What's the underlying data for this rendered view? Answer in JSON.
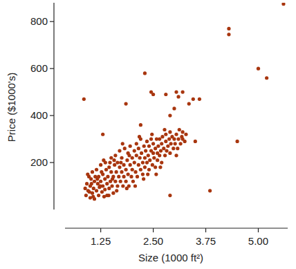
{
  "chart_data": {
    "type": "scatter",
    "x_label": "Size (1000 ft²)",
    "y_label": "Price ($1000's)",
    "color": "#a8360f",
    "marker": "circle",
    "grid": false,
    "xlim": [
      0.4,
      5.7
    ],
    "ylim": [
      0,
      880
    ],
    "xticks": [
      1.25,
      {
        "value": 2.5,
        "label": "2.50"
      },
      3.75,
      {
        "value": 5,
        "label": "5.00"
      }
    ],
    "yticks": [
      200,
      400,
      600,
      800
    ],
    "x": [
      0.9,
      0.92,
      0.95,
      0.97,
      1.0,
      1.0,
      1.02,
      1.05,
      1.05,
      1.08,
      1.1,
      1.1,
      0.88,
      0.94,
      1.03,
      1.07,
      0.98,
      1.12,
      1.15,
      1.15,
      1.18,
      1.2,
      1.2,
      1.22,
      1.25,
      1.25,
      1.28,
      1.3,
      1.3,
      1.32,
      1.35,
      1.35,
      1.38,
      1.4,
      1.4,
      1.17,
      1.27,
      1.33,
      1.24,
      1.36,
      1.42,
      1.45,
      1.45,
      1.48,
      1.5,
      1.5,
      1.52,
      1.55,
      1.55,
      1.58,
      1.6,
      1.6,
      1.62,
      1.65,
      1.65,
      1.68,
      1.7,
      1.7,
      1.44,
      1.57,
      1.63,
      1.47,
      1.53,
      1.72,
      1.75,
      1.75,
      1.78,
      1.8,
      1.8,
      1.82,
      1.85,
      1.85,
      1.88,
      1.9,
      1.9,
      1.92,
      1.95,
      1.95,
      1.98,
      2.0,
      2.0,
      1.77,
      1.87,
      1.93,
      1.73,
      2.02,
      2.05,
      2.05,
      2.08,
      2.1,
      2.1,
      2.12,
      2.15,
      2.15,
      2.18,
      2.2,
      2.2,
      2.22,
      2.25,
      2.25,
      2.28,
      2.3,
      2.3,
      2.07,
      2.17,
      2.27,
      2.32,
      2.35,
      2.35,
      2.38,
      2.4,
      2.4,
      2.42,
      2.45,
      2.45,
      2.48,
      2.5,
      2.5,
      2.52,
      2.55,
      2.55,
      2.58,
      2.6,
      2.6,
      2.37,
      2.47,
      2.57,
      2.62,
      2.65,
      2.65,
      2.68,
      2.7,
      2.7,
      2.72,
      2.75,
      2.78,
      2.8,
      2.8,
      2.82,
      2.85,
      2.88,
      2.9,
      2.9,
      2.92,
      2.95,
      2.98,
      3.0,
      2.67,
      2.77,
      3.02,
      3.05,
      3.08,
      3.1,
      3.12,
      3.15,
      3.18,
      3.2,
      3.25,
      3.28,
      3.05,
      0.85,
      1.3,
      1.85,
      2.3,
      2.45,
      2.5,
      2.2,
      2.8,
      3.05,
      3.2,
      3.1,
      3.45,
      3.6,
      3.35,
      3.0,
      2.9,
      3.5,
      3.2,
      4.3,
      4.3,
      4.5,
      3.85,
      5.0,
      5.2,
      5.6,
      2.9
    ],
    "values": [
      60,
      110,
      80,
      140,
      50,
      100,
      130,
      70,
      160,
      90,
      120,
      45,
      90,
      150,
      110,
      55,
      75,
      140,
      80,
      170,
      110,
      60,
      140,
      95,
      190,
      120,
      75,
      150,
      100,
      210,
      130,
      85,
      170,
      110,
      60,
      130,
      160,
      55,
      100,
      200,
      140,
      180,
      90,
      120,
      220,
      160,
      100,
      140,
      70,
      190,
      120,
      230,
      160,
      100,
      200,
      140,
      250,
      180,
      60,
      210,
      80,
      200,
      130,
      120,
      160,
      220,
      100,
      190,
      140,
      260,
      170,
      120,
      210,
      150,
      240,
      100,
      190,
      270,
      140,
      220,
      170,
      280,
      90,
      230,
      200,
      120,
      200,
      250,
      160,
      230,
      280,
      140,
      190,
      260,
      220,
      170,
      300,
      240,
      200,
      150,
      270,
      220,
      180,
      100,
      310,
      130,
      250,
      200,
      290,
      230,
      170,
      270,
      210,
      250,
      300,
      190,
      240,
      280,
      220,
      260,
      180,
      300,
      240,
      210,
      150,
      320,
      150,
      270,
      230,
      300,
      250,
      280,
      200,
      310,
      260,
      230,
      290,
      320,
      250,
      270,
      300,
      240,
      330,
      280,
      310,
      260,
      300,
      180,
      340,
      280,
      320,
      260,
      300,
      340,
      280,
      310,
      330,
      290,
      320,
      230,
      470,
      320,
      450,
      580,
      500,
      490,
      360,
      490,
      500,
      500,
      480,
      470,
      470,
      450,
      430,
      400,
      290,
      300,
      770,
      745,
      290,
      80,
      600,
      560,
      875,
      60
    ]
  }
}
